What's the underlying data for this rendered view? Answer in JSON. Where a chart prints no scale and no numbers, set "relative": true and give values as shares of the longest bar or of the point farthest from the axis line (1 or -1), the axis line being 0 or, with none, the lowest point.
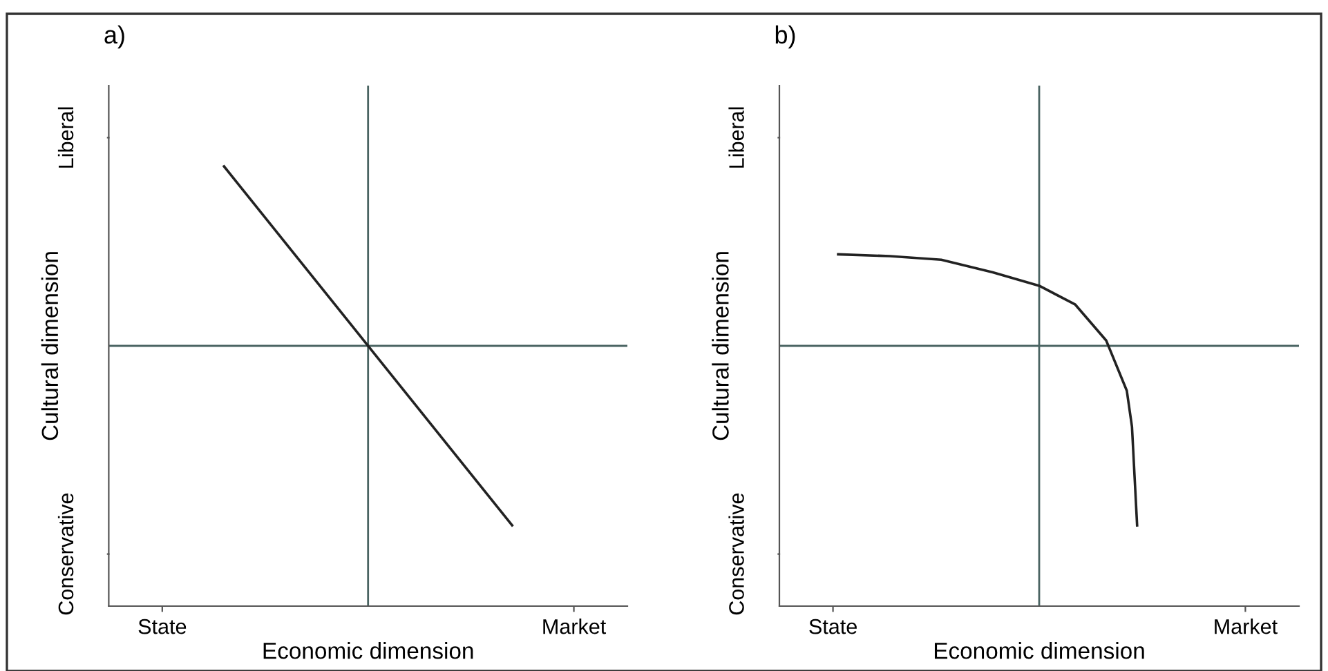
{
  "chart_data": [
    {
      "type": "line",
      "relative": true,
      "title": "a)",
      "xlabel": "Economic dimension",
      "ylabel": "Cultural dimension",
      "annotations": [
        "Conservative",
        "Liberal"
      ],
      "categories": [
        "State",
        null,
        null,
        null,
        null,
        null,
        null,
        null,
        null,
        null,
        null,
        null,
        null,
        null,
        null,
        null,
        null,
        null,
        null,
        null,
        "Market"
      ],
      "series": [
        {
          "color": "#222222",
          "values": [
            null,
            null,
            null,
            1,
            null,
            null,
            null,
            null,
            null,
            null,
            null,
            null,
            null,
            null,
            null,
            null,
            null,
            -1,
            null,
            null,
            null
          ]
        }
      ]
    },
    {
      "type": "line",
      "relative": true,
      "title": "b)",
      "xlabel": "Economic dimension",
      "ylabel": "Cultural dimension",
      "annotations": [
        "Conservative",
        "Liberal"
      ],
      "categories": [
        "State",
        null,
        null,
        null,
        null,
        null,
        null,
        null,
        null,
        null,
        null,
        null,
        null,
        null,
        null,
        null,
        null,
        null,
        null,
        null,
        null,
        null,
        null,
        null,
        null,
        null,
        null,
        null,
        null,
        null,
        null,
        null,
        null,
        null,
        null,
        null,
        null,
        null,
        null,
        null,
        null,
        null,
        null,
        null,
        null,
        null,
        null,
        null,
        null,
        null,
        null,
        null,
        null,
        null,
        null,
        null,
        null,
        null,
        null,
        null,
        null,
        null,
        null,
        null,
        null,
        null,
        null,
        null,
        null,
        null,
        null,
        null,
        null,
        null,
        null,
        null,
        null,
        null,
        null,
        null,
        "Market"
      ],
      "series": [
        {
          "color": "#222222",
          "values": [
            null,
            0.51,
            null,
            null,
            null,
            null,
            null,
            null,
            null,
            null,
            null,
            0.5,
            null,
            null,
            null,
            null,
            null,
            null,
            null,
            null,
            null,
            0.48,
            null,
            null,
            null,
            null,
            null,
            null,
            null,
            null,
            null,
            0.41,
            null,
            null,
            null,
            null,
            null,
            null,
            null,
            null,
            0.335,
            null,
            null,
            null,
            null,
            null,
            null,
            0.23,
            null,
            null,
            null,
            null,
            null,
            0.03,
            null,
            null,
            null,
            -0.25,
            -0.45,
            -1.0,
            null,
            null,
            null,
            null,
            null,
            null,
            null,
            null,
            null,
            null,
            null,
            null,
            null,
            null,
            null,
            null,
            null,
            null,
            null,
            null,
            null
          ]
        }
      ]
    }
  ]
}
